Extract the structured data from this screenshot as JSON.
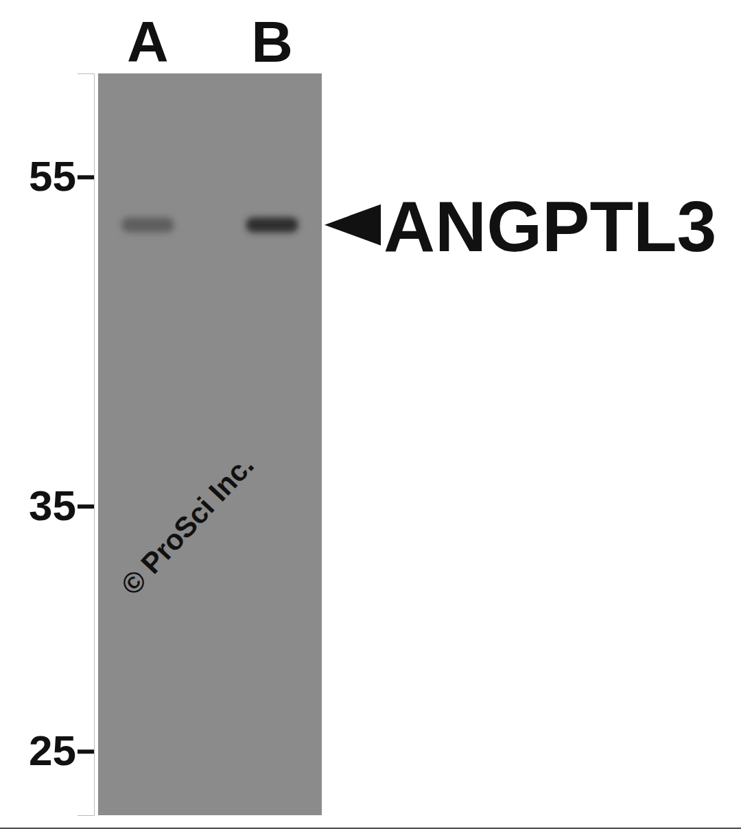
{
  "chart_data": {
    "type": "western_blot",
    "categories": [
      "A",
      "B"
    ],
    "values": [
      51.5,
      51.5
    ],
    "colors": [
      "#5e5e5e",
      "#2e2e2e"
    ],
    "ylim": [
      22.9,
      63.4
    ],
    "yticks": [
      25,
      35,
      55
    ],
    "log": "y",
    "annotation": {
      "text": "ANGPTL3",
      "y": 51.5
    },
    "watermark": "© ProSci Inc."
  }
}
